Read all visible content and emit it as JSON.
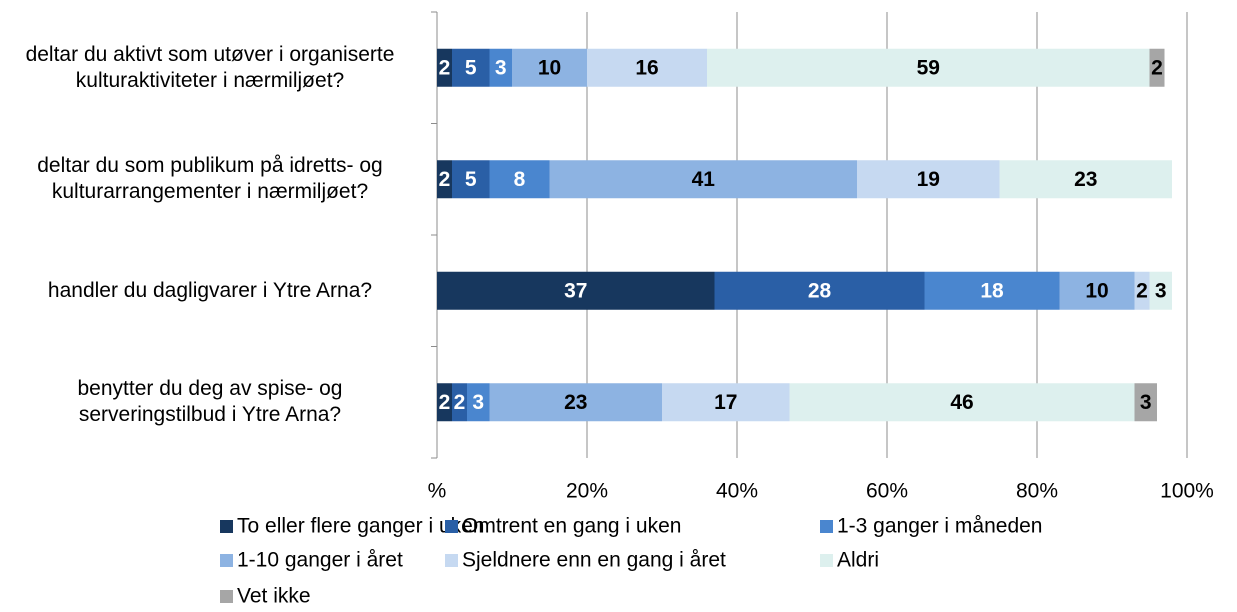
{
  "chart_data": {
    "type": "stacked_barh",
    "categories": [
      "deltar du aktivt som utøver i organiserte kulturaktiviteter i nærmiljøet?",
      "deltar du som publikum på idretts- og kulturarrangementer i nærmiljøet?",
      "handler du dagligvarer i Ytre Arna?",
      "benytter du deg av spise- og serveringstilbud i Ytre Arna?"
    ],
    "series": [
      {
        "name": "To eller flere ganger i uken",
        "color": "#17375e",
        "values": [
          2,
          2,
          37,
          2
        ]
      },
      {
        "name": "Omtrent en gang i uken",
        "color": "#2a5fa6",
        "values": [
          5,
          5,
          28,
          2
        ]
      },
      {
        "name": "1-3 ganger i måneden",
        "color": "#4a86cf",
        "values": [
          3,
          8,
          18,
          3
        ]
      },
      {
        "name": "1-10 ganger i året",
        "color": "#8db3e2",
        "values": [
          10,
          41,
          10,
          23
        ]
      },
      {
        "name": "Sjeldnere enn en gang i året",
        "color": "#c6d9f1",
        "values": [
          16,
          19,
          2,
          17
        ]
      },
      {
        "name": "Aldri",
        "color": "#ddf0ee",
        "values": [
          59,
          23,
          3,
          46
        ]
      },
      {
        "name": "Vet ikke",
        "color": "#a6a6a6",
        "values": [
          2,
          null,
          null,
          3
        ]
      }
    ],
    "xlim": [
      0,
      100
    ],
    "xticks": [
      {
        "value": 0,
        "label": "%"
      },
      {
        "value": 20,
        "label": "20%"
      },
      {
        "value": 40,
        "label": "40%"
      },
      {
        "value": 60,
        "label": "60%"
      },
      {
        "value": 80,
        "label": "80%"
      },
      {
        "value": 100,
        "label": "100%"
      }
    ],
    "grid": true
  }
}
